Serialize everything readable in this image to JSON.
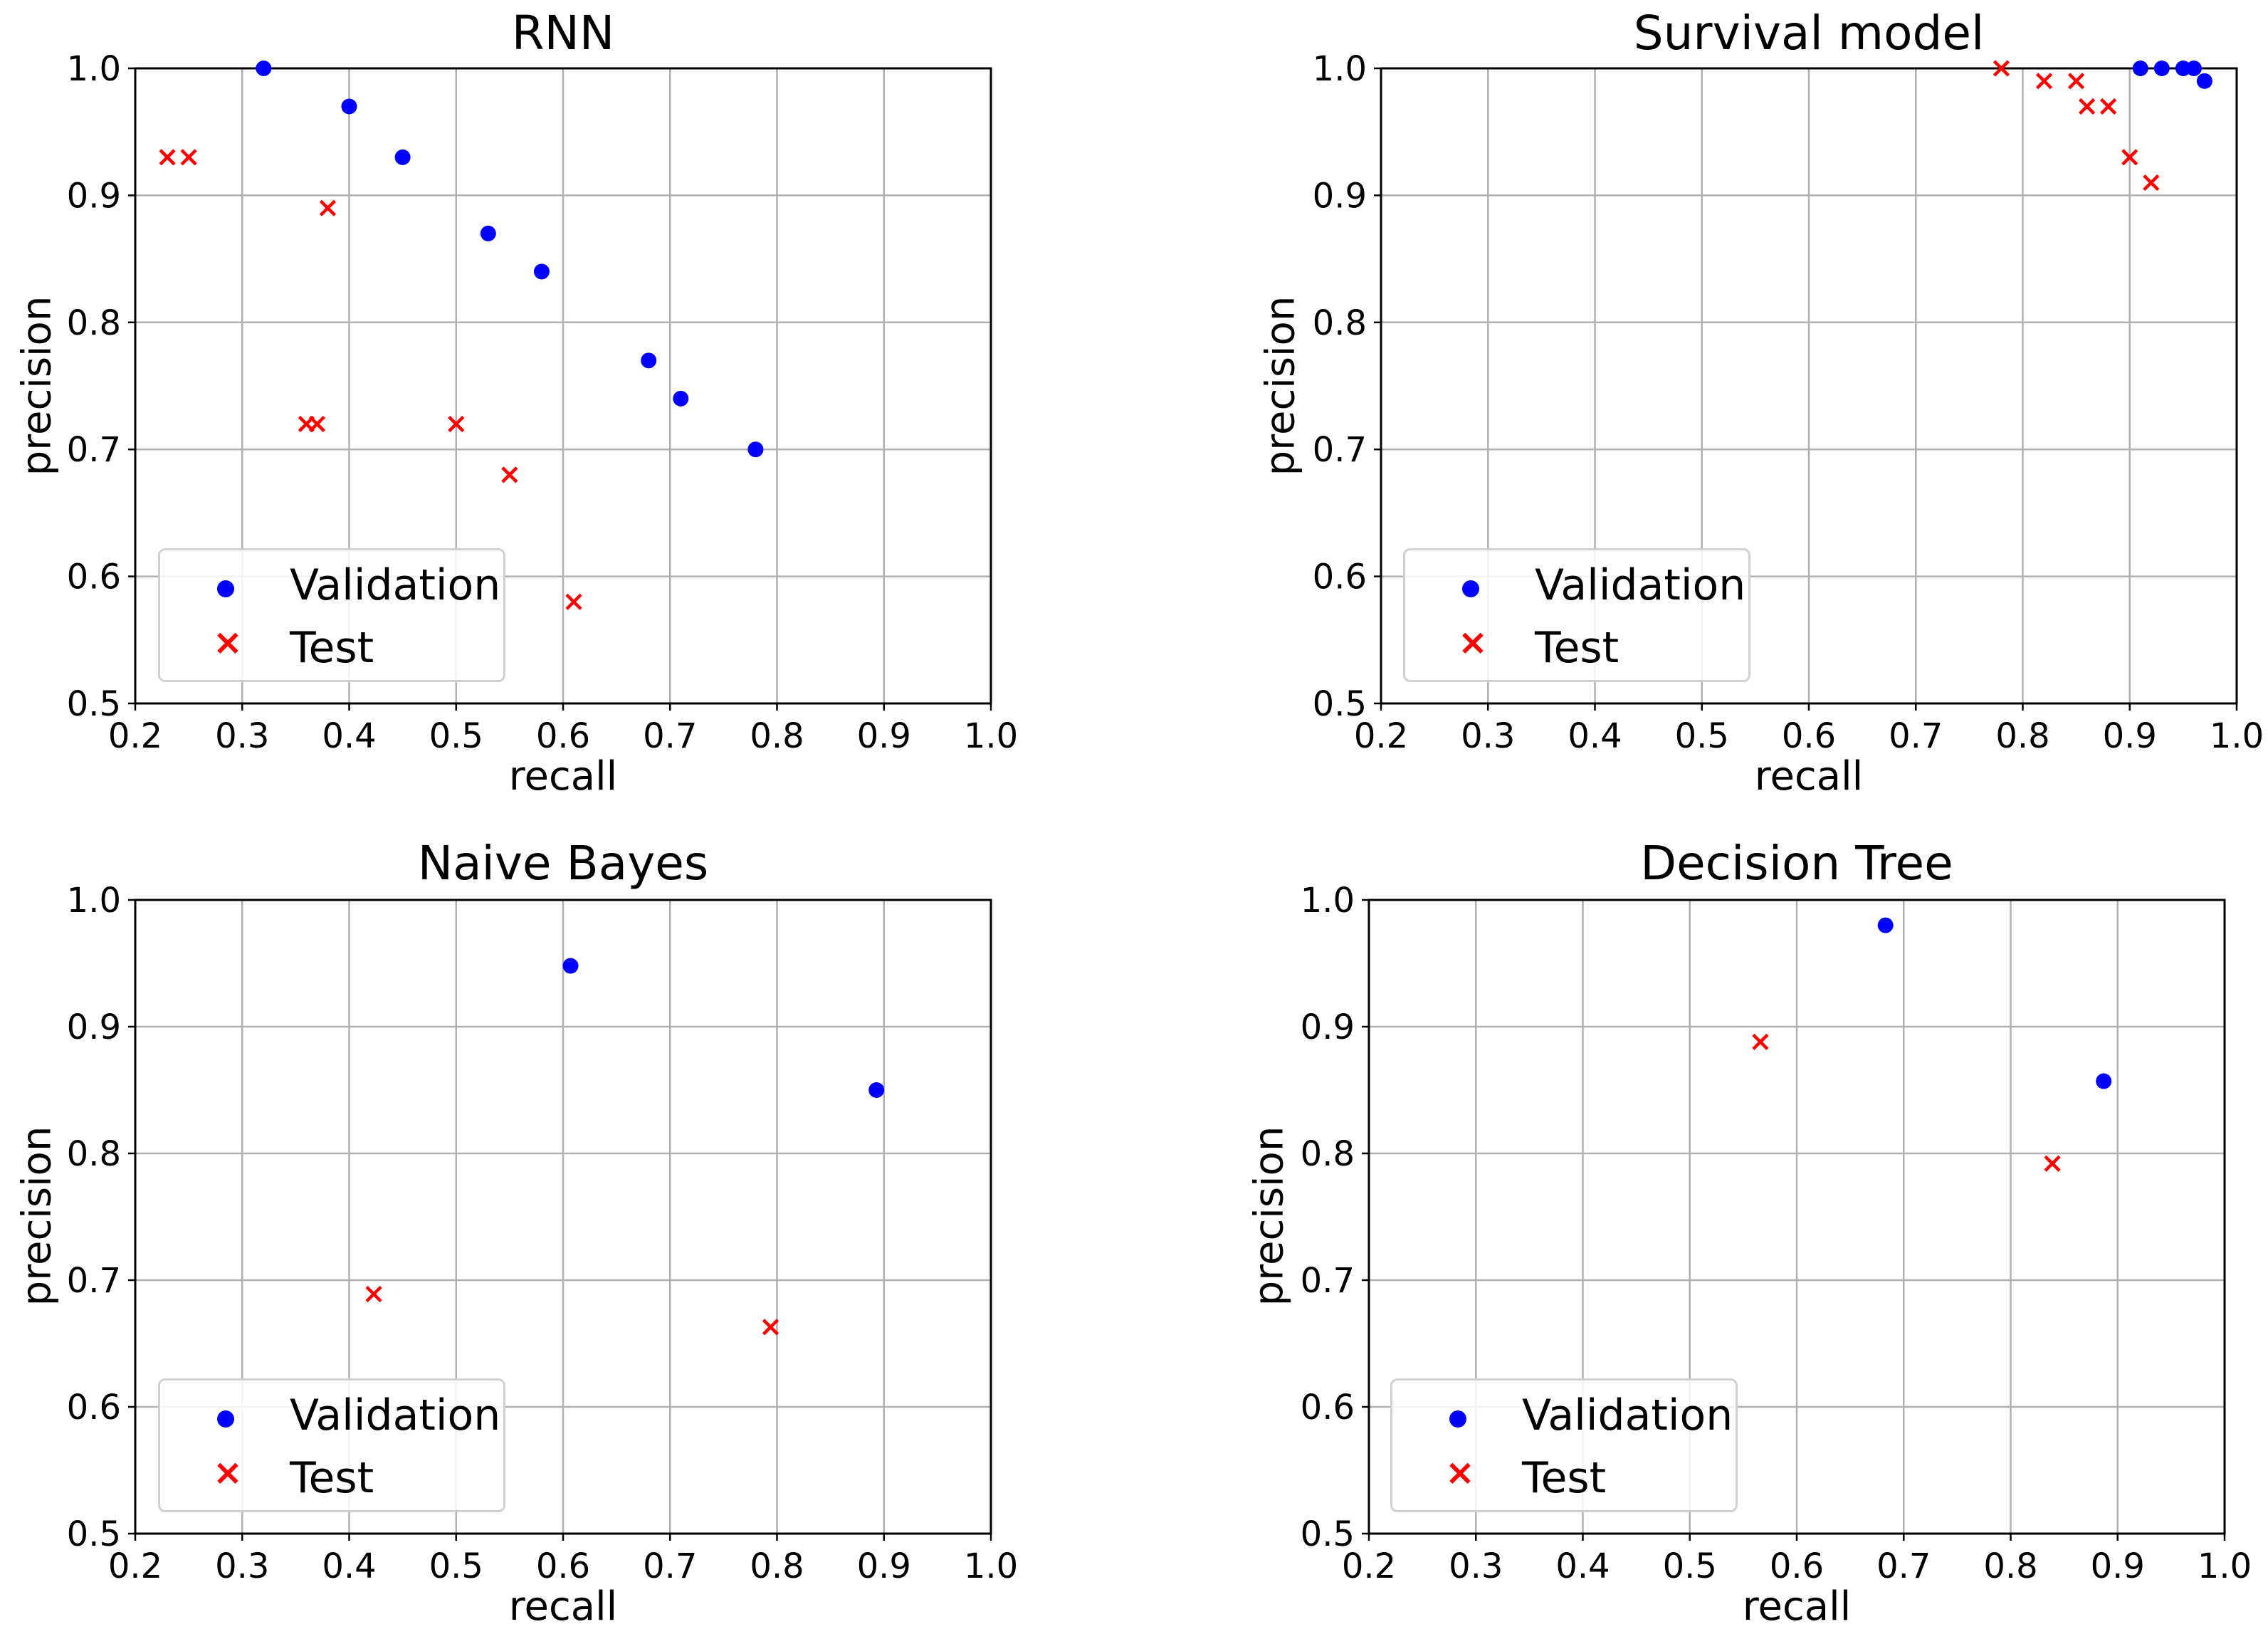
{
  "chart_data": [
    {
      "type": "scatter",
      "title": "RNN",
      "xlabel": "recall",
      "ylabel": "precision",
      "xlim": [
        0.2,
        1.0
      ],
      "ylim": [
        0.5,
        1.0
      ],
      "xticks": [
        "0.2",
        "0.3",
        "0.4",
        "0.5",
        "0.6",
        "0.7",
        "0.8",
        "0.9",
        "1.0"
      ],
      "yticks": [
        "0.5",
        "0.6",
        "0.7",
        "0.8",
        "0.9",
        "1.0"
      ],
      "grid": true,
      "legend_position": "lower-left",
      "series": [
        {
          "name": "Validation",
          "marker": "circle",
          "color": "#0000ff",
          "points": [
            [
              0.32,
              1.0
            ],
            [
              0.4,
              0.97
            ],
            [
              0.45,
              0.93
            ],
            [
              0.53,
              0.87
            ],
            [
              0.58,
              0.84
            ],
            [
              0.68,
              0.77
            ],
            [
              0.71,
              0.74
            ],
            [
              0.78,
              0.7
            ]
          ]
        },
        {
          "name": "Test",
          "marker": "x",
          "color": "#ff0000",
          "points": [
            [
              0.23,
              0.93
            ],
            [
              0.25,
              0.93
            ],
            [
              0.38,
              0.89
            ],
            [
              0.36,
              0.72
            ],
            [
              0.37,
              0.72
            ],
            [
              0.5,
              0.72
            ],
            [
              0.55,
              0.68
            ],
            [
              0.61,
              0.58
            ]
          ]
        }
      ]
    },
    {
      "type": "scatter",
      "title": "Survival model",
      "xlabel": "recall",
      "ylabel": "precision",
      "xlim": [
        0.2,
        1.0
      ],
      "ylim": [
        0.5,
        1.0
      ],
      "xticks": [
        "0.2",
        "0.3",
        "0.4",
        "0.5",
        "0.6",
        "0.7",
        "0.8",
        "0.9",
        "1.0"
      ],
      "yticks": [
        "0.5",
        "0.6",
        "0.7",
        "0.8",
        "0.9",
        "1.0"
      ],
      "grid": true,
      "legend_position": "lower-left",
      "series": [
        {
          "name": "Validation",
          "marker": "circle",
          "color": "#0000ff",
          "points": [
            [
              0.91,
              1.0
            ],
            [
              0.93,
              1.0
            ],
            [
              0.95,
              1.0
            ],
            [
              0.96,
              1.0
            ],
            [
              0.97,
              0.99
            ]
          ]
        },
        {
          "name": "Test",
          "marker": "x",
          "color": "#ff0000",
          "points": [
            [
              0.78,
              1.0
            ],
            [
              0.82,
              0.99
            ],
            [
              0.85,
              0.99
            ],
            [
              0.86,
              0.97
            ],
            [
              0.88,
              0.97
            ],
            [
              0.9,
              0.93
            ],
            [
              0.92,
              0.91
            ]
          ]
        }
      ]
    },
    {
      "type": "scatter",
      "title": "Naive Bayes",
      "xlabel": "recall",
      "ylabel": "precision",
      "xlim": [
        0.2,
        1.0
      ],
      "ylim": [
        0.5,
        1.0
      ],
      "xticks": [
        "0.2",
        "0.3",
        "0.4",
        "0.5",
        "0.6",
        "0.7",
        "0.8",
        "0.9",
        "1.0"
      ],
      "yticks": [
        "0.5",
        "0.6",
        "0.7",
        "0.8",
        "0.9",
        "1.0"
      ],
      "grid": true,
      "legend_position": "lower-left",
      "series": [
        {
          "name": "Validation",
          "marker": "circle",
          "color": "#0000ff",
          "points": [
            [
              0.607,
              0.948
            ],
            [
              0.893,
              0.85
            ]
          ]
        },
        {
          "name": "Test",
          "marker": "x",
          "color": "#ff0000",
          "points": [
            [
              0.423,
              0.689
            ],
            [
              0.794,
              0.663
            ]
          ]
        }
      ]
    },
    {
      "type": "scatter",
      "title": "Decision Tree",
      "xlabel": "recall",
      "ylabel": "precision",
      "xlim": [
        0.2,
        1.0
      ],
      "ylim": [
        0.5,
        1.0
      ],
      "xticks": [
        "0.2",
        "0.3",
        "0.4",
        "0.5",
        "0.6",
        "0.7",
        "0.8",
        "0.9",
        "1.0"
      ],
      "yticks": [
        "0.5",
        "0.6",
        "0.7",
        "0.8",
        "0.9",
        "1.0"
      ],
      "grid": true,
      "legend_position": "lower-left",
      "series": [
        {
          "name": "Validation",
          "marker": "circle",
          "color": "#0000ff",
          "points": [
            [
              0.683,
              0.98
            ],
            [
              0.887,
              0.857
            ]
          ]
        },
        {
          "name": "Test",
          "marker": "x",
          "color": "#ff0000",
          "points": [
            [
              0.566,
              0.888
            ],
            [
              0.839,
              0.792
            ]
          ]
        }
      ]
    }
  ]
}
